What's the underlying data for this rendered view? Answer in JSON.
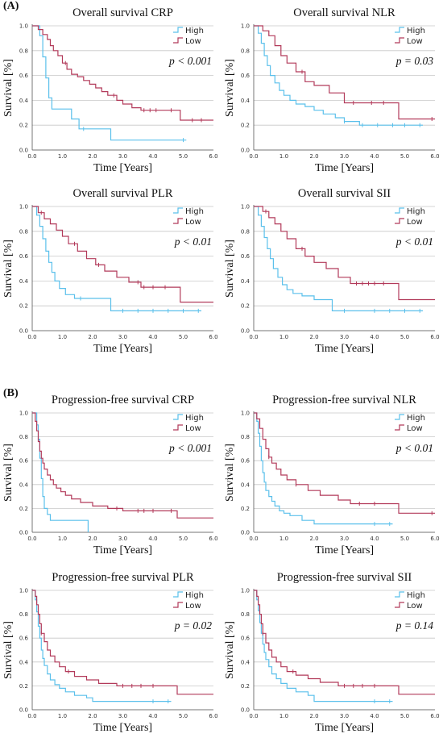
{
  "panels": [
    {
      "label": "(A)"
    },
    {
      "label": "(B)"
    }
  ],
  "colors": {
    "high": "#5bc0eb",
    "low": "#b23a5a",
    "grid": "#c8c8c8",
    "axis": "#555555"
  },
  "chart_data": [
    {
      "type": "line",
      "title": "Overall survival CRP",
      "xlabel": "Time [Years]",
      "ylabel": "Survival [%]",
      "xlim": [
        0,
        6
      ],
      "ylim": [
        0,
        1
      ],
      "xticks": [
        "0.0",
        "1.0",
        "2.0",
        "3.0",
        "4.0",
        "5.0",
        "6.0"
      ],
      "yticks": [
        "0.0",
        "0.2",
        "0.4",
        "0.6",
        "0.8",
        "1.0"
      ],
      "grid": true,
      "legend_position": "top-right",
      "annotation": "p < 0.001",
      "series": [
        {
          "name": "High",
          "x": [
            0,
            0.25,
            0.35,
            0.45,
            0.55,
            0.65,
            0.9,
            1.3,
            1.55,
            2.6,
            5.1
          ],
          "y": [
            1.0,
            0.92,
            0.75,
            0.58,
            0.42,
            0.33,
            0.33,
            0.25,
            0.17,
            0.08,
            0.08
          ],
          "censor_x": [
            1.7,
            5.0
          ]
        },
        {
          "name": "Low",
          "x": [
            0,
            0.2,
            0.35,
            0.5,
            0.6,
            0.7,
            0.85,
            1.0,
            1.15,
            1.3,
            1.5,
            1.7,
            1.9,
            2.1,
            2.3,
            2.5,
            2.8,
            3.0,
            3.3,
            3.6,
            4.6,
            4.9,
            6.0
          ],
          "y": [
            1.0,
            0.97,
            0.93,
            0.89,
            0.84,
            0.8,
            0.76,
            0.7,
            0.65,
            0.61,
            0.59,
            0.56,
            0.53,
            0.5,
            0.47,
            0.44,
            0.4,
            0.37,
            0.34,
            0.32,
            0.32,
            0.24,
            0.24
          ],
          "censor_x": [
            1.1,
            2.7,
            3.7,
            3.9,
            4.1,
            4.6,
            5.3,
            5.6
          ]
        }
      ]
    },
    {
      "type": "line",
      "title": "Overall survival NLR",
      "xlabel": "Time [Years]",
      "ylabel": "Survival [%]",
      "xlim": [
        0,
        6
      ],
      "ylim": [
        0,
        1
      ],
      "xticks": [
        "0.0",
        "1.0",
        "2.0",
        "3.0",
        "4.0",
        "5.0",
        "6.0"
      ],
      "yticks": [
        "0.0",
        "0.2",
        "0.4",
        "0.6",
        "0.8",
        "1.0"
      ],
      "grid": true,
      "legend_position": "top-right",
      "annotation": "p = 0.03",
      "series": [
        {
          "name": "High",
          "x": [
            0,
            0.15,
            0.25,
            0.35,
            0.45,
            0.55,
            0.7,
            0.85,
            1.0,
            1.2,
            1.4,
            1.7,
            2.0,
            2.3,
            2.7,
            3.0,
            3.5,
            5.6
          ],
          "y": [
            1.0,
            0.94,
            0.86,
            0.76,
            0.68,
            0.6,
            0.54,
            0.48,
            0.44,
            0.4,
            0.37,
            0.35,
            0.32,
            0.29,
            0.26,
            0.23,
            0.2,
            0.2
          ],
          "censor_x": [
            3.0,
            3.6,
            4.1,
            4.6,
            5.0,
            5.5
          ]
        },
        {
          "name": "Low",
          "x": [
            0,
            0.3,
            0.5,
            0.7,
            0.9,
            1.1,
            1.4,
            1.7,
            2.0,
            2.5,
            3.0,
            4.8,
            6.0
          ],
          "y": [
            1.0,
            0.96,
            0.92,
            0.84,
            0.76,
            0.7,
            0.63,
            0.55,
            0.52,
            0.46,
            0.38,
            0.25,
            0.25
          ],
          "censor_x": [
            1.6,
            3.3,
            3.9,
            4.3,
            5.9
          ]
        }
      ]
    },
    {
      "type": "line",
      "title": "Overall survival PLR",
      "xlabel": "Time [Years]",
      "ylabel": "Survival [%]",
      "xlim": [
        0,
        6
      ],
      "ylim": [
        0,
        1
      ],
      "xticks": [
        "0.0",
        "1.0",
        "2.0",
        "3.0",
        "4.0",
        "5.0",
        "6.0"
      ],
      "yticks": [
        "0.0",
        "0.2",
        "0.4",
        "0.6",
        "0.8",
        "1.0"
      ],
      "grid": true,
      "legend_position": "top-right",
      "annotation": "p < 0.01",
      "series": [
        {
          "name": "High",
          "x": [
            0,
            0.15,
            0.25,
            0.35,
            0.45,
            0.55,
            0.65,
            0.75,
            0.9,
            1.1,
            1.4,
            2.6,
            5.6
          ],
          "y": [
            1.0,
            0.93,
            0.84,
            0.74,
            0.64,
            0.55,
            0.47,
            0.4,
            0.34,
            0.29,
            0.26,
            0.16,
            0.16
          ],
          "censor_x": [
            1.6,
            3.0,
            3.5,
            4.0,
            4.5,
            5.0,
            5.5
          ]
        },
        {
          "name": "Low",
          "x": [
            0,
            0.2,
            0.4,
            0.6,
            0.8,
            1.0,
            1.2,
            1.5,
            1.8,
            2.1,
            2.4,
            2.8,
            3.2,
            3.6,
            4.6,
            4.9,
            6.0
          ],
          "y": [
            1.0,
            0.95,
            0.9,
            0.86,
            0.81,
            0.76,
            0.7,
            0.64,
            0.58,
            0.53,
            0.48,
            0.43,
            0.39,
            0.35,
            0.35,
            0.23,
            0.23
          ],
          "censor_x": [
            0.3,
            1.4,
            2.2,
            3.5,
            3.7,
            4.0,
            4.4
          ]
        }
      ]
    },
    {
      "type": "line",
      "title": "Overall survival SII",
      "xlabel": "Time [Years]",
      "ylabel": "Survival [%]",
      "xlim": [
        0,
        6
      ],
      "ylim": [
        0,
        1
      ],
      "xticks": [
        "0.0",
        "1.0",
        "2.0",
        "3.0",
        "4.0",
        "5.0",
        "6.0"
      ],
      "yticks": [
        "0.0",
        "0.2",
        "0.4",
        "0.6",
        "0.8",
        "1.0"
      ],
      "grid": true,
      "legend_position": "top-right",
      "annotation": "p < 0.01",
      "series": [
        {
          "name": "High",
          "x": [
            0,
            0.15,
            0.25,
            0.35,
            0.45,
            0.55,
            0.65,
            0.8,
            0.95,
            1.1,
            1.3,
            1.6,
            2.0,
            2.6,
            5.6
          ],
          "y": [
            1.0,
            0.93,
            0.84,
            0.75,
            0.66,
            0.58,
            0.5,
            0.43,
            0.37,
            0.33,
            0.3,
            0.28,
            0.25,
            0.16,
            0.16
          ],
          "censor_x": [
            3.0,
            4.0,
            4.5,
            5.0,
            5.5
          ]
        },
        {
          "name": "Low",
          "x": [
            0,
            0.3,
            0.5,
            0.7,
            0.9,
            1.1,
            1.4,
            1.7,
            2.0,
            2.4,
            2.8,
            3.2,
            4.8,
            6.0
          ],
          "y": [
            1.0,
            0.96,
            0.91,
            0.86,
            0.8,
            0.74,
            0.66,
            0.6,
            0.55,
            0.5,
            0.43,
            0.38,
            0.25,
            0.25
          ],
          "censor_x": [
            0.4,
            1.6,
            3.4,
            3.6,
            3.8,
            4.0,
            4.3
          ]
        }
      ]
    },
    {
      "type": "line",
      "title": "Progression-free survival CRP",
      "xlabel": "Time [Years]",
      "ylabel": "Survival [%]",
      "xlim": [
        0,
        6
      ],
      "ylim": [
        0,
        1
      ],
      "xticks": [
        "0.0",
        "1.0",
        "2.0",
        "3.0",
        "4.0",
        "5.0",
        "6.0"
      ],
      "yticks": [
        "0.0",
        "0.2",
        "0.4",
        "0.6",
        "0.8",
        "1.0"
      ],
      "grid": true,
      "legend_position": "top-right",
      "annotation": "p < 0.001",
      "series": [
        {
          "name": "High",
          "x": [
            0,
            0.15,
            0.2,
            0.25,
            0.3,
            0.35,
            0.4,
            0.5,
            0.6,
            1.85,
            1.85
          ],
          "y": [
            1.0,
            0.9,
            0.78,
            0.62,
            0.45,
            0.3,
            0.2,
            0.15,
            0.1,
            0.1,
            0.0
          ],
          "censor_x": []
        },
        {
          "name": "Low",
          "x": [
            0,
            0.1,
            0.15,
            0.2,
            0.25,
            0.3,
            0.35,
            0.4,
            0.5,
            0.6,
            0.7,
            0.8,
            0.95,
            1.1,
            1.3,
            1.6,
            2.0,
            2.5,
            3.0,
            4.8,
            6.0
          ],
          "y": [
            1.0,
            0.93,
            0.85,
            0.76,
            0.68,
            0.62,
            0.58,
            0.53,
            0.48,
            0.44,
            0.4,
            0.37,
            0.34,
            0.31,
            0.28,
            0.25,
            0.22,
            0.2,
            0.18,
            0.12,
            0.12
          ],
          "censor_x": [
            2.8,
            3.5,
            3.7,
            4.0,
            4.6
          ]
        }
      ]
    },
    {
      "type": "line",
      "title": "Progression-free survival NLR",
      "xlabel": "Time [Years]",
      "ylabel": "Survival [%]",
      "xlim": [
        0,
        6
      ],
      "ylim": [
        0,
        1
      ],
      "xticks": [
        "0.0",
        "1.0",
        "2.0",
        "3.0",
        "4.0",
        "5.0",
        "6.0"
      ],
      "yticks": [
        "0.0",
        "0.2",
        "0.4",
        "0.6",
        "0.8",
        "1.0"
      ],
      "grid": true,
      "legend_position": "top-right",
      "annotation": "p < 0.01",
      "series": [
        {
          "name": "High",
          "x": [
            0,
            0.1,
            0.15,
            0.2,
            0.25,
            0.3,
            0.35,
            0.4,
            0.5,
            0.6,
            0.7,
            0.85,
            1.0,
            1.2,
            1.6,
            2.0,
            4.6
          ],
          "y": [
            1.0,
            0.93,
            0.83,
            0.72,
            0.6,
            0.5,
            0.42,
            0.35,
            0.3,
            0.26,
            0.22,
            0.18,
            0.16,
            0.14,
            0.1,
            0.07,
            0.07
          ],
          "censor_x": [
            4.0,
            4.5
          ]
        },
        {
          "name": "Low",
          "x": [
            0,
            0.1,
            0.2,
            0.3,
            0.4,
            0.5,
            0.6,
            0.75,
            0.9,
            1.1,
            1.4,
            1.8,
            2.2,
            2.8,
            3.2,
            4.8,
            6.0
          ],
          "y": [
            1.0,
            0.95,
            0.87,
            0.78,
            0.7,
            0.63,
            0.58,
            0.53,
            0.48,
            0.44,
            0.4,
            0.35,
            0.31,
            0.27,
            0.24,
            0.16,
            0.16
          ],
          "censor_x": [
            0.5,
            1.4,
            3.5,
            4.0,
            5.9
          ]
        }
      ]
    },
    {
      "type": "line",
      "title": "Progression-free survival PLR",
      "xlabel": "Time [Years]",
      "ylabel": "Survival [%]",
      "xlim": [
        0,
        6
      ],
      "ylim": [
        0,
        1
      ],
      "xticks": [
        "0.0",
        "1.0",
        "2.0",
        "3.0",
        "4.0",
        "5.0",
        "6.0"
      ],
      "yticks": [
        "0.0",
        "0.2",
        "0.4",
        "0.6",
        "0.8",
        "1.0"
      ],
      "grid": true,
      "legend_position": "top-right",
      "annotation": "p = 0.02",
      "series": [
        {
          "name": "High",
          "x": [
            0,
            0.1,
            0.15,
            0.2,
            0.25,
            0.3,
            0.35,
            0.4,
            0.5,
            0.6,
            0.75,
            0.9,
            1.1,
            1.4,
            1.8,
            2.0,
            4.6
          ],
          "y": [
            1.0,
            0.92,
            0.82,
            0.7,
            0.6,
            0.5,
            0.43,
            0.37,
            0.3,
            0.25,
            0.21,
            0.18,
            0.15,
            0.12,
            0.1,
            0.07,
            0.07
          ],
          "censor_x": [
            4.0,
            4.5
          ]
        },
        {
          "name": "Low",
          "x": [
            0,
            0.1,
            0.15,
            0.2,
            0.25,
            0.3,
            0.4,
            0.5,
            0.6,
            0.75,
            0.9,
            1.1,
            1.4,
            1.8,
            2.2,
            2.8,
            4.8,
            6.0
          ],
          "y": [
            1.0,
            0.95,
            0.88,
            0.8,
            0.72,
            0.64,
            0.57,
            0.5,
            0.45,
            0.4,
            0.36,
            0.32,
            0.28,
            0.25,
            0.22,
            0.2,
            0.13,
            0.13
          ],
          "censor_x": [
            0.3,
            1.2,
            3.0,
            3.3,
            3.6,
            4.0
          ]
        }
      ]
    },
    {
      "type": "line",
      "title": "Progression-free survival SII",
      "xlabel": "Time [Years]",
      "ylabel": "Survival [%]",
      "xlim": [
        0,
        6
      ],
      "ylim": [
        0,
        1
      ],
      "xticks": [
        "0.0",
        "1.0",
        "2.0",
        "3.0",
        "4.0",
        "5.0",
        "6.0"
      ],
      "yticks": [
        "0.0",
        "0.2",
        "0.4",
        "0.6",
        "0.8",
        "1.0"
      ],
      "grid": true,
      "legend_position": "top-right",
      "annotation": "p = 0.14",
      "series": [
        {
          "name": "High",
          "x": [
            0,
            0.1,
            0.15,
            0.2,
            0.25,
            0.3,
            0.35,
            0.4,
            0.5,
            0.6,
            0.75,
            0.9,
            1.1,
            1.4,
            1.8,
            2.0,
            4.6
          ],
          "y": [
            1.0,
            0.92,
            0.83,
            0.73,
            0.64,
            0.55,
            0.48,
            0.42,
            0.36,
            0.3,
            0.26,
            0.22,
            0.18,
            0.15,
            0.12,
            0.07,
            0.07
          ],
          "censor_x": [
            4.0,
            4.5
          ]
        },
        {
          "name": "Low",
          "x": [
            0,
            0.1,
            0.15,
            0.2,
            0.25,
            0.3,
            0.4,
            0.5,
            0.6,
            0.75,
            0.9,
            1.1,
            1.4,
            1.8,
            2.2,
            2.8,
            4.8,
            6.0
          ],
          "y": [
            1.0,
            0.95,
            0.88,
            0.8,
            0.72,
            0.64,
            0.56,
            0.5,
            0.44,
            0.4,
            0.36,
            0.32,
            0.29,
            0.26,
            0.23,
            0.2,
            0.13,
            0.13
          ],
          "censor_x": [
            0.3,
            1.3,
            3.0,
            3.3,
            3.6,
            4.0
          ]
        }
      ]
    }
  ]
}
